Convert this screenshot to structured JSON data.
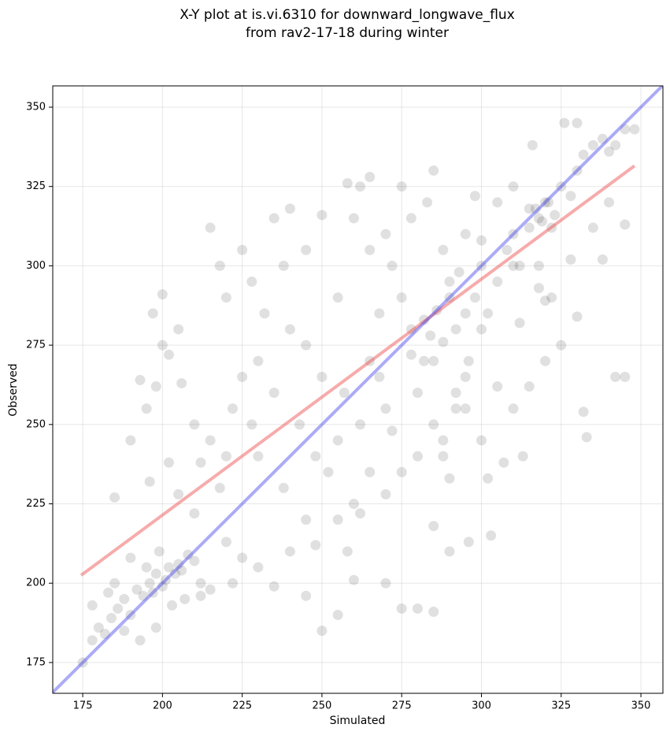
{
  "chart_data": {
    "type": "scatter",
    "title": "X-Y plot at is.vi.6310 for downward_longwave_flux",
    "subtitle": "from rav2-17-18 during winter",
    "xlabel": "Simulated",
    "ylabel": "Observed",
    "xlim": [
      165.6,
      356.9
    ],
    "ylim": [
      165.3,
      356.7
    ],
    "xticks": [
      175,
      200,
      225,
      250,
      275,
      300,
      325,
      350
    ],
    "yticks": [
      175,
      200,
      225,
      250,
      275,
      300,
      325,
      350
    ],
    "grid": true,
    "series": [
      {
        "type": "scatter",
        "color": "#000000",
        "x": [
          175,
          178,
          180,
          182,
          184,
          186,
          188,
          190,
          192,
          194,
          196,
          197,
          198,
          200,
          201,
          202,
          204,
          205,
          206,
          208,
          210,
          212,
          199,
          195,
          190,
          185,
          188,
          193,
          198,
          203,
          207,
          212,
          215,
          183,
          178,
          185,
          190,
          195,
          198,
          200,
          205,
          200,
          193,
          197,
          202,
          206,
          210,
          212,
          215,
          202,
          196,
          205,
          210,
          218,
          220,
          225,
          222,
          230,
          235,
          240,
          245,
          250,
          255,
          260,
          262,
          265,
          270,
          275,
          280,
          285,
          290,
          296,
          303,
          290,
          302,
          285,
          215,
          218,
          220,
          225,
          228,
          232,
          235,
          238,
          240,
          245,
          250,
          255,
          258,
          262,
          230,
          225,
          222,
          235,
          240,
          245,
          250,
          255,
          248,
          243,
          238,
          230,
          228,
          220,
          245,
          252,
          257,
          262,
          265,
          268,
          270,
          272,
          265,
          260,
          275,
          278,
          280,
          282,
          285,
          288,
          292,
          295,
          298,
          300,
          302,
          305,
          308,
          310,
          312,
          315,
          318,
          320,
          322,
          325,
          328,
          330,
          332,
          335,
          338,
          340,
          342,
          345,
          348,
          310,
          305,
          300,
          296,
          292,
          288,
          310,
          315,
          320,
          325,
          330,
          322,
          318,
          328,
          335,
          340,
          345,
          338,
          342,
          345,
          332,
          333,
          320,
          313,
          307,
          300,
          295,
          285,
          278,
          283,
          288,
          290,
          295,
          298,
          285,
          275,
          265,
          255,
          258,
          260,
          248,
          270,
          275,
          280,
          305,
          312,
          318,
          316,
          326,
          330,
          310,
          300,
          295,
          292,
          288,
          270,
          272,
          268,
          278,
          282,
          284,
          286,
          290,
          293,
          317,
          319,
          321,
          315,
          323
        ],
        "values": [
          175,
          182,
          186,
          184,
          189,
          192,
          195,
          190,
          198,
          196,
          200,
          197,
          203,
          199,
          201,
          205,
          203,
          206,
          204,
          209,
          207,
          200,
          210,
          205,
          208,
          200,
          185,
          182,
          186,
          193,
          195,
          196,
          198,
          197,
          193,
          227,
          245,
          255,
          262,
          275,
          280,
          291,
          264,
          285,
          272,
          263,
          250,
          238,
          245,
          238,
          232,
          228,
          222,
          230,
          213,
          208,
          200,
          205,
          199,
          210,
          196,
          185,
          190,
          201,
          222,
          235,
          200,
          192,
          192,
          191,
          210,
          213,
          215,
          233,
          233,
          218,
          312,
          300,
          290,
          305,
          295,
          285,
          315,
          300,
          318,
          305,
          316,
          290,
          326,
          325,
          270,
          265,
          255,
          260,
          280,
          275,
          265,
          245,
          240,
          250,
          230,
          240,
          250,
          240,
          220,
          235,
          260,
          250,
          270,
          285,
          310,
          300,
          305,
          315,
          290,
          280,
          260,
          270,
          250,
          240,
          255,
          265,
          290,
          300,
          285,
          295,
          305,
          310,
          300,
          318,
          315,
          320,
          312,
          325,
          322,
          330,
          335,
          338,
          340,
          336,
          338,
          343,
          343,
          325,
          320,
          280,
          270,
          260,
          245,
          255,
          262,
          270,
          275,
          284,
          290,
          300,
          302,
          312,
          320,
          313,
          302,
          265,
          265,
          254,
          246,
          289,
          240,
          238,
          245,
          255,
          270,
          315,
          320,
          305,
          295,
          310,
          322,
          330,
          325,
          328,
          220,
          210,
          225,
          212,
          228,
          235,
          240,
          262,
          282,
          293,
          338,
          345,
          345,
          300,
          308,
          285,
          280,
          276,
          255,
          248,
          265,
          272,
          283,
          278,
          286,
          290,
          298,
          318,
          314,
          320,
          312,
          316
        ]
      },
      {
        "type": "line",
        "color": "#ee4444",
        "x": [
          174.5,
          348
        ],
        "values": [
          202.5,
          331.5
        ]
      },
      {
        "type": "line",
        "color": "#4444ee",
        "x": [
          165.6,
          356.9
        ],
        "values": [
          165.6,
          356.9
        ]
      }
    ]
  }
}
